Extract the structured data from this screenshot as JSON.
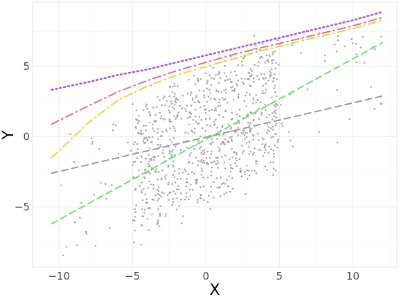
{
  "chart_data": {
    "type": "scatter",
    "title": "",
    "xlabel": "X",
    "ylabel": "Y",
    "xlim": [
      -11.8,
      13.0
    ],
    "ylim": [
      -9.3,
      9.6
    ],
    "x_ticks": [
      -10,
      -5,
      0,
      5,
      10
    ],
    "x_tick_labels": [
      "−10",
      "−5",
      "0",
      "5",
      "10"
    ],
    "y_ticks": [
      -5,
      0,
      5
    ],
    "y_tick_labels": [
      "−5",
      "0",
      "5"
    ],
    "grid": true,
    "legend": "none",
    "scatter": {
      "color": "#999999",
      "approx_point_count": 900,
      "core_x_range": [
        -5,
        5
      ],
      "tail_x_range": [
        -10.5,
        12
      ],
      "trend_slope": 0.5,
      "spread": 4.5
    },
    "series": [
      {
        "style": "dashed",
        "color": "#999999",
        "x": [
          -10.5,
          12
        ],
        "y": [
          -2.6,
          2.9
        ]
      },
      {
        "style": "dashed",
        "color": "#77d977",
        "x": [
          -10.5,
          12
        ],
        "y": [
          -6.2,
          6.7
        ]
      },
      {
        "style": "dotdash",
        "color": "#f2cf40",
        "x": [
          -10.5,
          -8,
          -6,
          -4,
          -2,
          0,
          2,
          4,
          6,
          8,
          10,
          12
        ],
        "y": [
          -1.5,
          1.0,
          2.6,
          3.6,
          4.4,
          5.0,
          5.6,
          6.2,
          6.7,
          7.2,
          7.7,
          8.3
        ]
      },
      {
        "style": "dotdash",
        "color": "#e0708a",
        "x": [
          -10.5,
          -8,
          -6,
          -4,
          -2,
          0,
          2,
          4,
          6,
          8,
          10,
          12
        ],
        "y": [
          0.9,
          2.2,
          3.2,
          4.0,
          4.7,
          5.3,
          5.9,
          6.4,
          6.9,
          7.4,
          7.9,
          8.5
        ]
      },
      {
        "style": "dotted",
        "color": "#a855e8",
        "x": [
          -10.5,
          -8,
          -6,
          -4,
          -2,
          0,
          2,
          4,
          6,
          8,
          10,
          12
        ],
        "y": [
          3.35,
          3.9,
          4.4,
          4.8,
          5.3,
          5.8,
          6.3,
          6.8,
          7.3,
          7.8,
          8.3,
          8.9
        ]
      }
    ]
  }
}
